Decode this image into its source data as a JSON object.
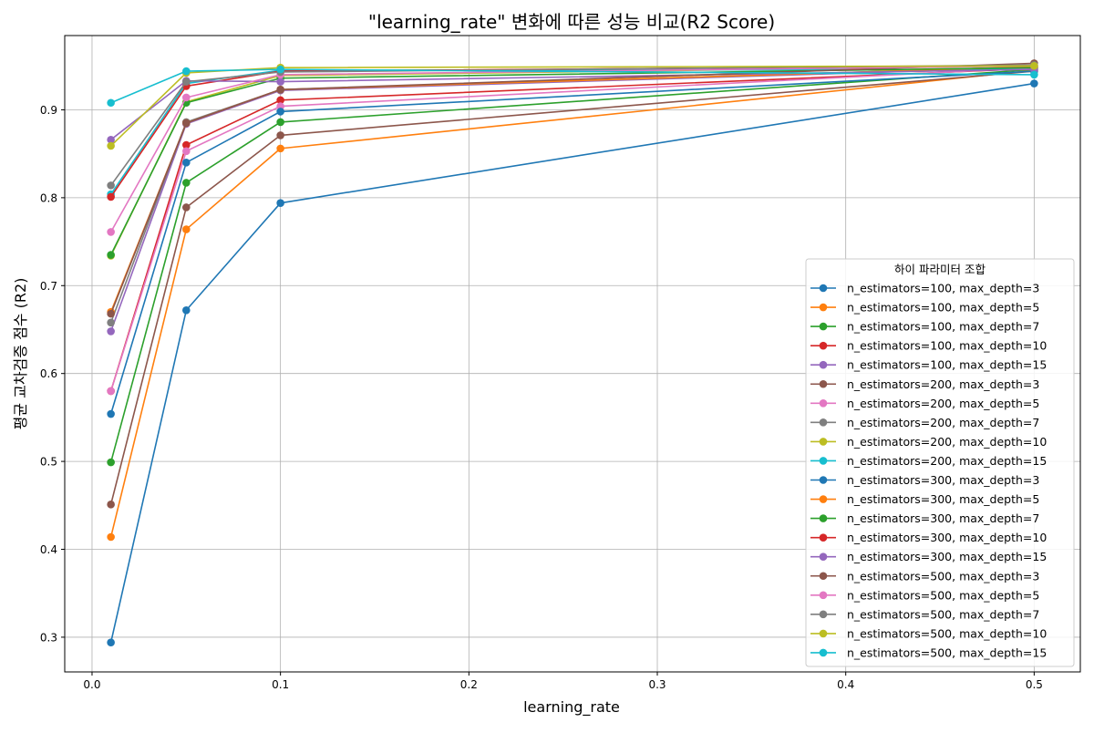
{
  "chart_data": {
    "type": "line",
    "title": "\"learning_rate\" 변화에 따른 성능 비교(R2 Score)",
    "xlabel": "learning_rate",
    "ylabel": "평균 교차검증 점수 (R2)",
    "x": [
      0.01,
      0.05,
      0.1,
      0.5
    ],
    "xlim": [
      -0.0145,
      0.5245
    ],
    "ylim": [
      0.2605,
      0.9845
    ],
    "xticks": [
      0.0,
      0.1,
      0.2,
      0.3,
      0.4,
      0.5
    ],
    "xtick_labels": [
      "0.0",
      "0.1",
      "0.2",
      "0.3",
      "0.4",
      "0.5"
    ],
    "yticks": [
      0.3,
      0.4,
      0.5,
      0.6,
      0.7,
      0.8,
      0.9
    ],
    "ytick_labels": [
      "0.3",
      "0.4",
      "0.5",
      "0.6",
      "0.7",
      "0.8",
      "0.9"
    ],
    "grid": true,
    "legend": {
      "title": "하이 파라미터 조합",
      "placement": "lower-right"
    },
    "series": [
      {
        "name": "n_estimators=100, max_depth=3",
        "color": "#1f77b4",
        "values": [
          0.294,
          0.672,
          0.794,
          0.93
        ]
      },
      {
        "name": "n_estimators=100, max_depth=5",
        "color": "#ff7f0e",
        "values": [
          0.414,
          0.764,
          0.856,
          0.945
        ]
      },
      {
        "name": "n_estimators=100, max_depth=7",
        "color": "#2ca02c",
        "values": [
          0.499,
          0.817,
          0.886,
          0.946
        ]
      },
      {
        "name": "n_estimators=100, max_depth=10",
        "color": "#d62728",
        "values": [
          0.58,
          0.86,
          0.911,
          0.947
        ]
      },
      {
        "name": "n_estimators=100, max_depth=15",
        "color": "#9467bd",
        "values": [
          0.648,
          0.884,
          0.922,
          0.948
        ]
      },
      {
        "name": "n_estimators=200, max_depth=3",
        "color": "#8c564b",
        "values": [
          0.451,
          0.789,
          0.871,
          0.944
        ]
      },
      {
        "name": "n_estimators=200, max_depth=5",
        "color": "#e377c2",
        "values": [
          0.58,
          0.853,
          0.904,
          0.948
        ]
      },
      {
        "name": "n_estimators=200, max_depth=7",
        "color": "#7f7f7f",
        "values": [
          0.658,
          0.886,
          0.923,
          0.949
        ]
      },
      {
        "name": "n_estimators=200, max_depth=10",
        "color": "#bcbd22",
        "values": [
          0.734,
          0.909,
          0.939,
          0.95
        ]
      },
      {
        "name": "n_estimators=200, max_depth=15",
        "color": "#17becf",
        "values": [
          0.804,
          0.93,
          0.945,
          0.946
        ]
      },
      {
        "name": "n_estimators=300, max_depth=3",
        "color": "#1f77b4",
        "values": [
          0.554,
          0.84,
          0.898,
          0.944
        ]
      },
      {
        "name": "n_estimators=300, max_depth=5",
        "color": "#ff7f0e",
        "values": [
          0.67,
          0.885,
          0.923,
          0.949
        ]
      },
      {
        "name": "n_estimators=300, max_depth=7",
        "color": "#2ca02c",
        "values": [
          0.735,
          0.908,
          0.936,
          0.948
        ]
      },
      {
        "name": "n_estimators=300, max_depth=10",
        "color": "#d62728",
        "values": [
          0.801,
          0.927,
          0.944,
          0.95
        ]
      },
      {
        "name": "n_estimators=300, max_depth=15",
        "color": "#9467bd",
        "values": [
          0.866,
          0.933,
          0.932,
          0.946
        ]
      },
      {
        "name": "n_estimators=500, max_depth=3",
        "color": "#8c564b",
        "values": [
          0.668,
          0.885,
          0.923,
          0.953
        ]
      },
      {
        "name": "n_estimators=500, max_depth=5",
        "color": "#e377c2",
        "values": [
          0.761,
          0.914,
          0.94,
          0.95
        ]
      },
      {
        "name": "n_estimators=500, max_depth=7",
        "color": "#7f7f7f",
        "values": [
          0.814,
          0.932,
          0.943,
          0.951
        ]
      },
      {
        "name": "n_estimators=500, max_depth=10",
        "color": "#bcbd22",
        "values": [
          0.859,
          0.942,
          0.948,
          0.95
        ]
      },
      {
        "name": "n_estimators=500, max_depth=15",
        "color": "#17becf",
        "values": [
          0.908,
          0.944,
          0.946,
          0.94
        ]
      }
    ]
  }
}
